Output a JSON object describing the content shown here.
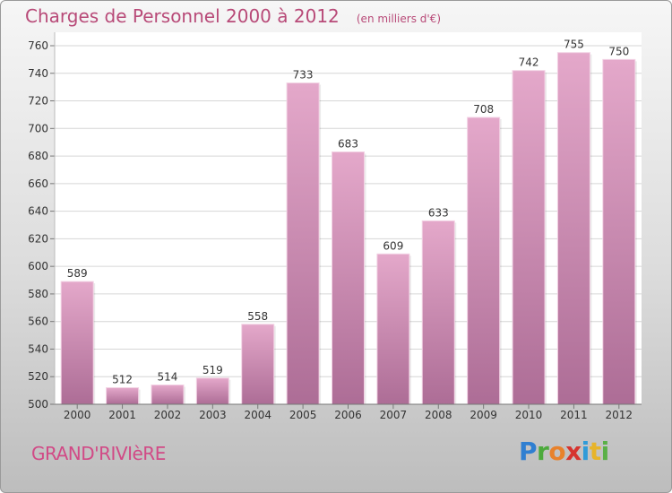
{
  "header": {
    "title": "Charges de Personnel 2000 à 2012",
    "unit_note": "(en milliers d'€)"
  },
  "footer": {
    "place": "GRAND'RIVIèRE",
    "brand_letters": [
      {
        "ch": "P",
        "color": "#2f7fd1"
      },
      {
        "ch": "r",
        "color": "#4caa3c"
      },
      {
        "ch": "o",
        "color": "#e8822c"
      },
      {
        "ch": "x",
        "color": "#d6342f"
      },
      {
        "ch": "i",
        "color": "#2f9bd8"
      },
      {
        "ch": "t",
        "color": "#e7b42a"
      },
      {
        "ch": "i",
        "color": "#5bb046"
      }
    ]
  },
  "chart_data": {
    "type": "bar",
    "title": "Charges de Personnel 2000 à 2012",
    "subtitle": "(en milliers d'€)",
    "categories": [
      "2000",
      "2001",
      "2002",
      "2003",
      "2004",
      "2005",
      "2006",
      "2007",
      "2008",
      "2009",
      "2010",
      "2011",
      "2012"
    ],
    "values": [
      589,
      512,
      514,
      519,
      558,
      733,
      683,
      609,
      633,
      708,
      742,
      755,
      750
    ],
    "ylim": [
      500,
      760
    ],
    "yticks": [
      500,
      520,
      540,
      560,
      580,
      600,
      620,
      640,
      660,
      680,
      700,
      720,
      740,
      760
    ],
    "grid": true,
    "bar_color": "#c0739f",
    "value_labels": true
  }
}
